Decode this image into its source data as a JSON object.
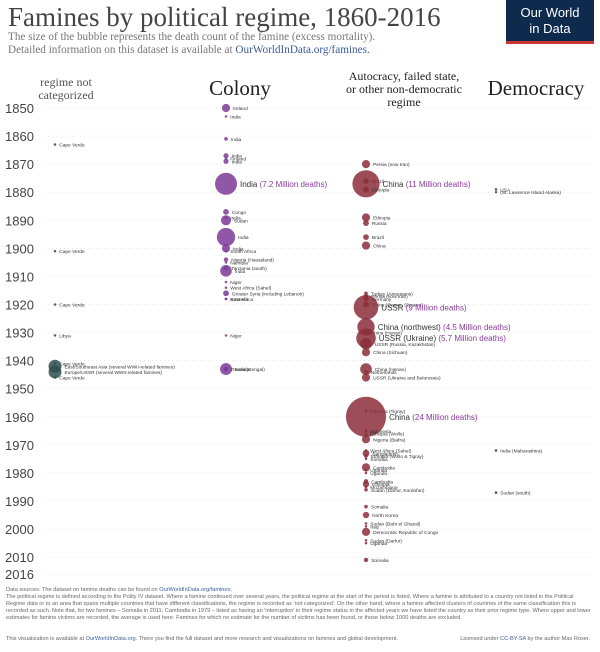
{
  "header": {
    "title": "Famines by political regime, 1860-2016",
    "subtitle_line1": "The size of the bubble represents the death count of the famine (excess mortality).",
    "subtitle_line2": "Detailed information on this dataset is available at",
    "subtitle_link": "OurWorldInData.org/famines.",
    "logo_line1": "Our World",
    "logo_line2": "in Data"
  },
  "columns": {
    "not_categorized": "regime not categorized",
    "colony": "Colony",
    "autocracy": "Autocracy, failed state, or other non-democratic regime",
    "democracy": "Democracy"
  },
  "colors": {
    "colony": "#7b3a96",
    "autocracy": "#8b2e3b",
    "democracy": "#555555",
    "not_categorized": "#2f4f4f",
    "axis_text": "#444444",
    "grid": "#cccccc",
    "big_label": "#8a3a9a"
  },
  "chart_data": {
    "type": "scatter",
    "title": "Famines by political regime, 1860-2016",
    "ylim": [
      1850,
      2016
    ],
    "y_ticks": [
      1850,
      1860,
      1870,
      1880,
      1890,
      1900,
      1910,
      1920,
      1930,
      1940,
      1950,
      1960,
      1970,
      1980,
      1990,
      2000,
      2010,
      2016
    ],
    "categories": [
      "regime not categorized",
      "Colony",
      "Autocracy, failed state, or other non-democratic regime",
      "Democracy"
    ],
    "points": [
      {
        "category": "Colony",
        "year": 1850,
        "label": "Ireland",
        "deaths": 1.0
      },
      {
        "category": "Colony",
        "year": 1853,
        "label": "India",
        "deaths": 0.1
      },
      {
        "category": "Colony",
        "year": 1861,
        "label": "India",
        "deaths": 0.2
      },
      {
        "category": "Colony",
        "year": 1867,
        "label": "India",
        "deaths": 0.4
      },
      {
        "category": "Colony",
        "year": 1868,
        "label": "Finland",
        "deaths": 0.1
      },
      {
        "category": "Colony",
        "year": 1869,
        "label": "India",
        "deaths": 0.4
      },
      {
        "category": "Colony",
        "year": 1877,
        "label": "India",
        "big_value": "(7.2 Million deaths)",
        "deaths": 7.2
      },
      {
        "category": "Colony",
        "year": 1887,
        "label": "Congo",
        "deaths": 0.5
      },
      {
        "category": "Colony",
        "year": 1889,
        "label": "India",
        "deaths": 0.1
      },
      {
        "category": "Colony",
        "year": 1890,
        "label": "Sudan",
        "deaths": 1.5
      },
      {
        "category": "Colony",
        "year": 1896,
        "label": "India",
        "deaths": 5.0
      },
      {
        "category": "Colony",
        "year": 1900,
        "label": "India",
        "deaths": 1.0
      },
      {
        "category": "Colony",
        "year": 1901,
        "label": "South Africa",
        "deaths": 0.1
      },
      {
        "category": "Colony",
        "year": 1904,
        "label": "Nigeria (Hausaland)",
        "deaths": 0.3
      },
      {
        "category": "Colony",
        "year": 1905,
        "label": "Namibia",
        "deaths": 0.1
      },
      {
        "category": "Colony",
        "year": 1907,
        "label": "Tanzania (south)",
        "deaths": 0.3
      },
      {
        "category": "Colony",
        "year": 1908,
        "label": "India",
        "deaths": 2.0
      },
      {
        "category": "Colony",
        "year": 1912,
        "label": "Niger",
        "deaths": 0.1
      },
      {
        "category": "Colony",
        "year": 1914,
        "label": "West Africa (Sahel)",
        "deaths": 0.1
      },
      {
        "category": "Colony",
        "year": 1916,
        "label": "Greater Syria (including Lebanon)",
        "deaths": 0.5
      },
      {
        "category": "Colony",
        "year": 1918,
        "label": "East Africa",
        "deaths": 0.1
      },
      {
        "category": "Colony",
        "year": 1918,
        "label": "Armenia",
        "deaths": 0.1
      },
      {
        "category": "Colony",
        "year": 1931,
        "label": "Niger",
        "deaths": 0.1
      },
      {
        "category": "Colony",
        "year": 1943,
        "label": "India (Bengal)",
        "deaths": 2.1
      },
      {
        "category": "Colony",
        "year": 1943,
        "label": "Rwanda",
        "deaths": 0.3
      },
      {
        "category": "Autocracy, failed state, or other non-democratic regime",
        "year": 1870,
        "label": "Persia (now Iran)",
        "deaths": 1.0
      },
      {
        "category": "Autocracy, failed state, or other non-democratic regime",
        "year": 1876,
        "label": "Brazil",
        "deaths": 0.5
      },
      {
        "category": "Autocracy, failed state, or other non-democratic regime",
        "year": 1877,
        "label": "China",
        "big_value": "(11 Million deaths)",
        "deaths": 11.0
      },
      {
        "category": "Autocracy, failed state, or other non-democratic regime",
        "year": 1879,
        "label": "Ethiopia",
        "deaths": 0.5
      },
      {
        "category": "Autocracy, failed state, or other non-democratic regime",
        "year": 1889,
        "label": "Ethiopia",
        "deaths": 1.0
      },
      {
        "category": "Autocracy, failed state, or other non-democratic regime",
        "year": 1891,
        "label": "Russia",
        "deaths": 0.5
      },
      {
        "category": "Autocracy, failed state, or other non-democratic regime",
        "year": 1896,
        "label": "Brazil",
        "deaths": 0.5
      },
      {
        "category": "Autocracy, failed state, or other non-democratic regime",
        "year": 1899,
        "label": "China",
        "deaths": 1.0
      },
      {
        "category": "Autocracy, failed state, or other non-democratic regime",
        "year": 1916,
        "label": "Turkey (Armenians)",
        "deaths": 0.2
      },
      {
        "category": "Autocracy, failed state, or other non-democratic regime",
        "year": 1917,
        "label": "Persia (now Iran)",
        "deaths": 0.3
      },
      {
        "category": "Autocracy, failed state, or other non-democratic regime",
        "year": 1918,
        "label": "Germany",
        "deaths": 0.4
      },
      {
        "category": "Autocracy, failed state, or other non-democratic regime",
        "year": 1920,
        "label": "China (Gansu, Shaanxi)",
        "deaths": 0.5
      },
      {
        "category": "Autocracy, failed state, or other non-democratic regime",
        "year": 1921,
        "label": "USSR",
        "big_value": "(9 Million deaths)",
        "deaths": 9.0
      },
      {
        "category": "Autocracy, failed state, or other non-democratic regime",
        "year": 1928,
        "label": "China (northwest)",
        "big_value": "(4.5 Million deaths)",
        "deaths": 4.5
      },
      {
        "category": "Autocracy, failed state, or other non-democratic regime",
        "year": 1930,
        "label": "China (Hunan)",
        "deaths": 0.2
      },
      {
        "category": "Autocracy, failed state, or other non-democratic regime",
        "year": 1932,
        "label": "USSR (Ukraine)",
        "big_value": "(5.7 Million deaths)",
        "deaths": 5.7
      },
      {
        "category": "Autocracy, failed state, or other non-democratic regime",
        "year": 1934,
        "label": "USSR (Russia, Kazakhstan)",
        "deaths": 2.0
      },
      {
        "category": "Autocracy, failed state, or other non-democratic regime",
        "year": 1937,
        "label": "China (Sichuan)",
        "deaths": 1.0
      },
      {
        "category": "Autocracy, failed state, or other non-democratic regime",
        "year": 1943,
        "label": "China (Henan)",
        "deaths": 2.0
      },
      {
        "category": "Autocracy, failed state, or other non-democratic regime",
        "year": 1944,
        "label": "Netherlands",
        "deaths": 0.2
      },
      {
        "category": "Autocracy, failed state, or other non-democratic regime",
        "year": 1946,
        "label": "USSR (Ukraine and Belorussia)",
        "deaths": 1.0
      },
      {
        "category": "Autocracy, failed state, or other non-democratic regime",
        "year": 1958,
        "label": "Ethiopia (Tigray)",
        "deaths": 0.1
      },
      {
        "category": "Autocracy, failed state, or other non-democratic regime",
        "year": 1960,
        "label": "China",
        "big_value": "(24 Million deaths)",
        "deaths": 24.0
      },
      {
        "category": "Autocracy, failed state, or other non-democratic regime",
        "year": 1965,
        "label": "Indonesia",
        "deaths": 0.1
      },
      {
        "category": "Autocracy, failed state, or other non-democratic regime",
        "year": 1966,
        "label": "Ethiopia (Wollo)",
        "deaths": 0.1
      },
      {
        "category": "Autocracy, failed state, or other non-democratic regime",
        "year": 1968,
        "label": "Nigeria (Biafra)",
        "deaths": 1.0
      },
      {
        "category": "Autocracy, failed state, or other non-democratic regime",
        "year": 1972,
        "label": "West Africa (Sahel)",
        "deaths": 0.1
      },
      {
        "category": "Autocracy, failed state, or other non-democratic regime",
        "year": 1973,
        "label": "Bangladesh",
        "deaths": 0.7
      },
      {
        "category": "Autocracy, failed state, or other non-democratic regime",
        "year": 1974,
        "label": "Ethiopia (Wollo & Tigray)",
        "deaths": 0.2
      },
      {
        "category": "Autocracy, failed state, or other non-democratic regime",
        "year": 1975,
        "label": "Somalia",
        "deaths": 0.1
      },
      {
        "category": "Autocracy, failed state, or other non-democratic regime",
        "year": 1978,
        "label": "Cambodia",
        "deaths": 1.0
      },
      {
        "category": "Autocracy, failed state, or other non-democratic regime",
        "year": 1979,
        "label": "Uganda",
        "deaths": 0.1
      },
      {
        "category": "Autocracy, failed state, or other non-democratic regime",
        "year": 1980,
        "label": "Uganda",
        "deaths": 0.1
      },
      {
        "category": "Autocracy, failed state, or other non-democratic regime",
        "year": 1983,
        "label": "Cambodia",
        "deaths": 0.3
      },
      {
        "category": "Autocracy, failed state, or other non-democratic regime",
        "year": 1984,
        "label": "Ethiopia",
        "deaths": 0.6
      },
      {
        "category": "Autocracy, failed state, or other non-democratic regime",
        "year": 1985,
        "label": "Mozambique",
        "deaths": 0.1
      },
      {
        "category": "Autocracy, failed state, or other non-democratic regime",
        "year": 1986,
        "label": "Sudan (Darfur, Kordofan)",
        "deaths": 0.2
      },
      {
        "category": "Autocracy, failed state, or other non-democratic regime",
        "year": 1992,
        "label": "Somalia",
        "deaths": 0.2
      },
      {
        "category": "Autocracy, failed state, or other non-democratic regime",
        "year": 1995,
        "label": "North Korea",
        "deaths": 0.6
      },
      {
        "category": "Autocracy, failed state, or other non-democratic regime",
        "year": 1998,
        "label": "Sudan (Bahr el Ghazal)",
        "deaths": 0.1
      },
      {
        "category": "Autocracy, failed state, or other non-democratic regime",
        "year": 1999,
        "label": "Iraq",
        "deaths": 0.1
      },
      {
        "category": "Autocracy, failed state, or other non-democratic regime",
        "year": 2001,
        "label": "Democratic Republic of Congo",
        "deaths": 1.0
      },
      {
        "category": "Autocracy, failed state, or other non-democratic regime",
        "year": 2004,
        "label": "Sudan (Darfur)",
        "deaths": 0.1
      },
      {
        "category": "Autocracy, failed state, or other non-democratic regime",
        "year": 2005,
        "label": "Uganda",
        "deaths": 0.1
      },
      {
        "category": "Autocracy, failed state, or other non-democratic regime",
        "year": 2011,
        "label": "Somalia",
        "deaths": 0.3
      },
      {
        "category": "Democracy",
        "year": 1879,
        "label": "USA",
        "deaths": 0.1
      },
      {
        "category": "Democracy",
        "year": 1880,
        "label": "(St. Lawrence Island Alaska)",
        "deaths": 0.0
      },
      {
        "category": "Democracy",
        "year": 1972,
        "label": "India (Maharashtra)",
        "deaths": 0.1
      },
      {
        "category": "Democracy",
        "year": 1987,
        "label": "Sudan (south)",
        "deaths": 0.1
      },
      {
        "category": "regime not categorized",
        "year": 1863,
        "label": "Cape Verde",
        "deaths": 0.1
      },
      {
        "category": "regime not categorized",
        "year": 1901,
        "label": "Cape Verde",
        "deaths": 0.1
      },
      {
        "category": "regime not categorized",
        "year": 1920,
        "label": "Cape Verde",
        "deaths": 0.1
      },
      {
        "category": "regime not categorized",
        "year": 1931,
        "label": "Libya",
        "deaths": 0.1
      },
      {
        "category": "regime not categorized",
        "year": 1941,
        "label": "Cape Verde",
        "deaths": 0.1
      },
      {
        "category": "regime not categorized",
        "year": 1942,
        "label": "East/Southeast Asia (several WWII-related famines)",
        "deaths": 2.5
      },
      {
        "category": "regime not categorized",
        "year": 1944,
        "label": "Europe/USSR (several WWII-related famines)",
        "deaths": 2.5
      },
      {
        "category": "regime not categorized",
        "year": 1946,
        "label": "Cape Verde",
        "deaths": 0.1
      }
    ]
  },
  "footer": {
    "sources_prefix": "Data sources: The dataset on famine deaths can be found on",
    "sources_link": "OurWorldInData.org/famines;",
    "note": "The political regime is defined according to the Polity IV dataset. Where a famine continued over several years, the political regime at the start of the period is listed. Where a famine is attributed to a country not listed in the Political Regime data or to an area that spans multiple countries that have different classifications, the regime is recorded as 'not categorized'. On the other hand, where a famine affected clusters of countries of the same classification this is recorded as such. Note that, for two famines – Somalia in 2011; Cambodia in 1979 – listed as having an 'interruption' in their regime status in the affected years we have listed the country as their prior regime type. Where upper and lower estimates for famine victims are recorded, the average is used here. Famines for which no estimate for the number of victims has been found, or those below 1000 deaths are excluded.",
    "credit_prefix": "This visualization is available at",
    "credit_link": "OurWorldInData.org.",
    "credit_suffix": "There you find the full dataset and more research and visualizations on famines and global development.",
    "license_prefix": "Licensed under",
    "license_link": "CC-BY-SA",
    "license_suffix": "by the author Max Roser."
  }
}
